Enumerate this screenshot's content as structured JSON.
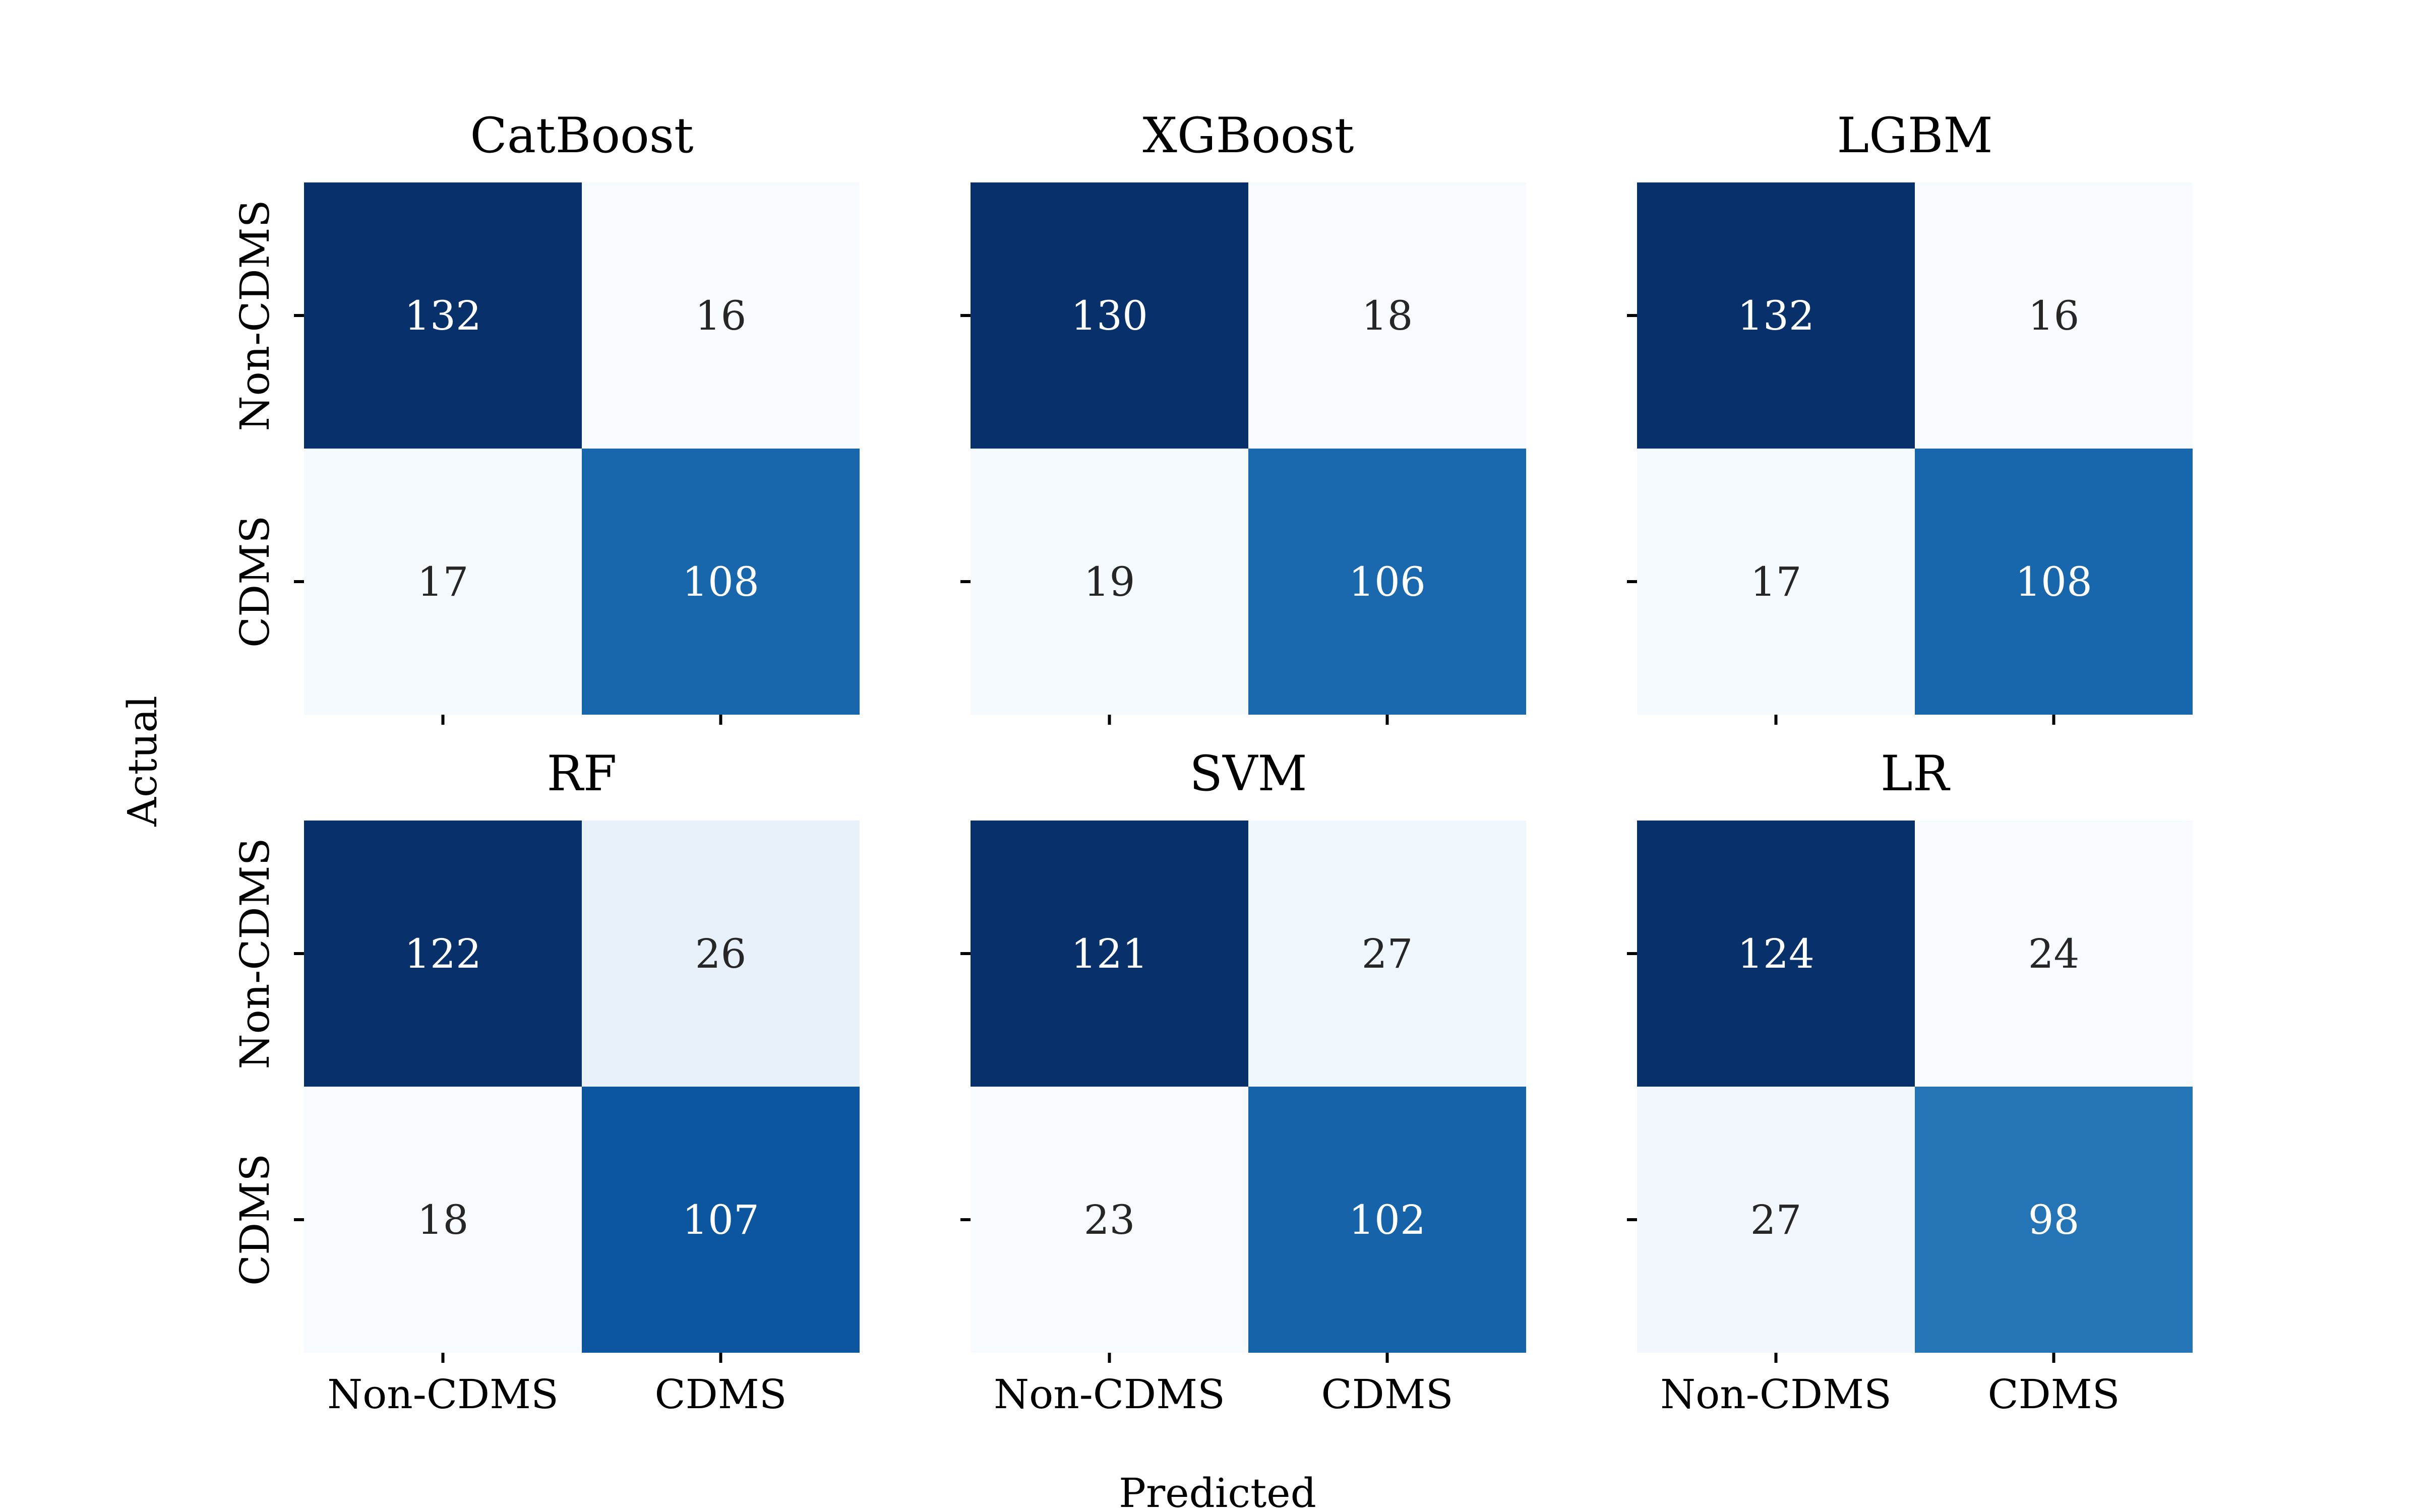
{
  "figure": {
    "xlabel": "Predicted",
    "ylabel": "Actual"
  },
  "chart_data": [
    {
      "type": "heatmap",
      "title": "CatBoost",
      "x_categories": [
        "Non-CDMS",
        "CDMS"
      ],
      "y_categories": [
        "Non-CDMS",
        "CDMS"
      ],
      "values": [
        [
          132,
          16
        ],
        [
          17,
          108
        ]
      ],
      "colormap": "Blues"
    },
    {
      "type": "heatmap",
      "title": "XGBoost",
      "x_categories": [
        "Non-CDMS",
        "CDMS"
      ],
      "y_categories": [
        "Non-CDMS",
        "CDMS"
      ],
      "values": [
        [
          130,
          18
        ],
        [
          19,
          106
        ]
      ],
      "colormap": "Blues"
    },
    {
      "type": "heatmap",
      "title": "LGBM",
      "x_categories": [
        "Non-CDMS",
        "CDMS"
      ],
      "y_categories": [
        "Non-CDMS",
        "CDMS"
      ],
      "values": [
        [
          132,
          16
        ],
        [
          17,
          108
        ]
      ],
      "colormap": "Blues"
    },
    {
      "type": "heatmap",
      "title": "RF",
      "x_categories": [
        "Non-CDMS",
        "CDMS"
      ],
      "y_categories": [
        "Non-CDMS",
        "CDMS"
      ],
      "values": [
        [
          122,
          26
        ],
        [
          18,
          107
        ]
      ],
      "colormap": "Blues"
    },
    {
      "type": "heatmap",
      "title": "SVM",
      "x_categories": [
        "Non-CDMS",
        "CDMS"
      ],
      "y_categories": [
        "Non-CDMS",
        "CDMS"
      ],
      "values": [
        [
          121,
          27
        ],
        [
          23,
          102
        ]
      ],
      "colormap": "Blues"
    },
    {
      "type": "heatmap",
      "title": "LR",
      "x_categories": [
        "Non-CDMS",
        "CDMS"
      ],
      "y_categories": [
        "Non-CDMS",
        "CDMS"
      ],
      "values": [
        [
          124,
          24
        ],
        [
          27,
          98
        ]
      ],
      "colormap": "Blues"
    }
  ]
}
